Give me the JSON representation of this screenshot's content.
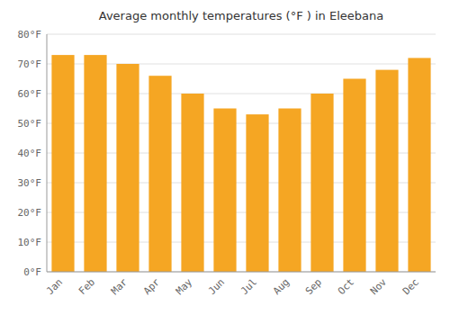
{
  "chart_data": {
    "type": "bar",
    "title": "Average monthly temperatures (°F ) in Eleebana",
    "categories": [
      "Jan",
      "Feb",
      "Mar",
      "Apr",
      "May",
      "Jun",
      "Jul",
      "Aug",
      "Sep",
      "Oct",
      "Nov",
      "Dec"
    ],
    "values": [
      73,
      73,
      70,
      66,
      60,
      55,
      53,
      55,
      60,
      65,
      68,
      72
    ],
    "color": "#F5A623",
    "ylim": [
      0,
      80
    ],
    "yticks": [
      {
        "value": 0,
        "label": "0°F"
      },
      {
        "value": 10,
        "label": "10°F"
      },
      {
        "value": 20,
        "label": "20°F"
      },
      {
        "value": 30,
        "label": "30°F"
      },
      {
        "value": 40,
        "label": "40°F"
      },
      {
        "value": 50,
        "label": "50°F"
      },
      {
        "value": 60,
        "label": "60°F"
      },
      {
        "value": 70,
        "label": "70°F"
      },
      {
        "value": 80,
        "label": "80°F"
      }
    ],
    "grid": true
  }
}
